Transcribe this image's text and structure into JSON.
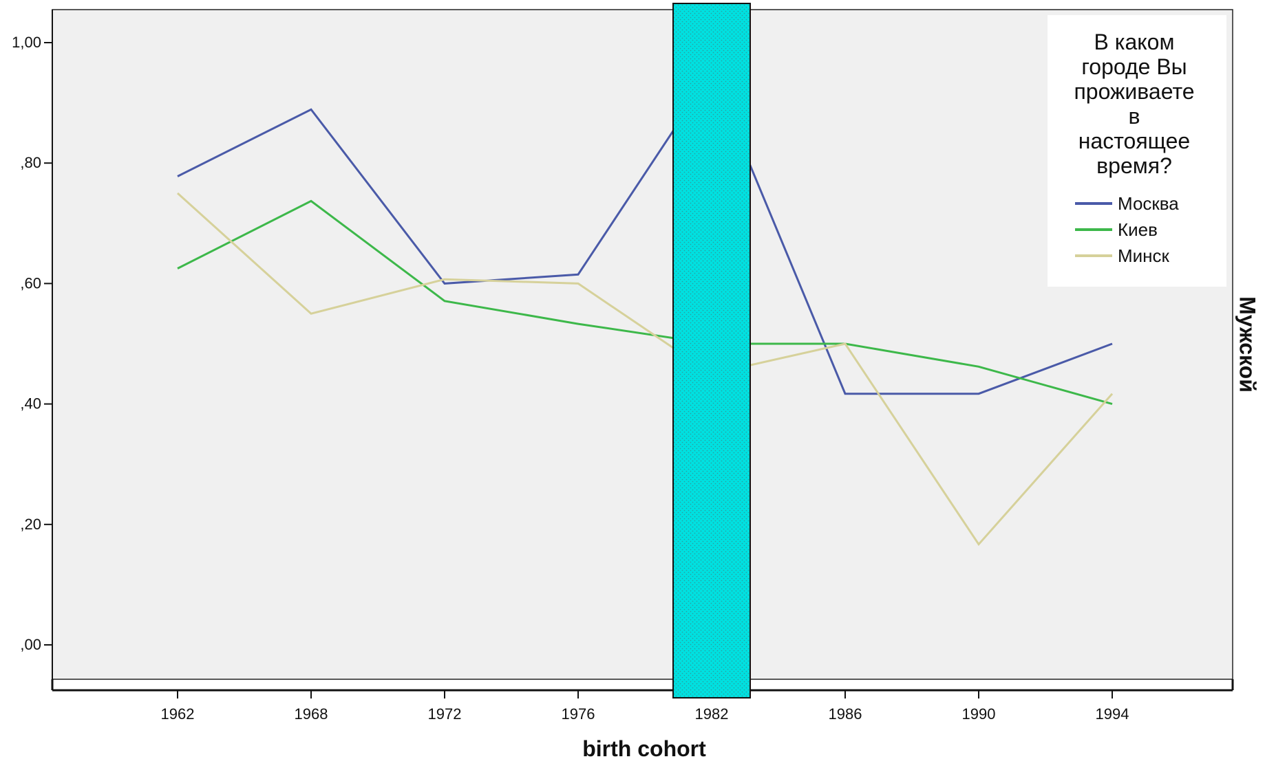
{
  "chart_data": {
    "type": "line",
    "x": [
      1962,
      1968,
      1972,
      1976,
      1982,
      1986,
      1990,
      1994
    ],
    "x_tick_labels": [
      "1962",
      "1968",
      "1972",
      "1976",
      "1982",
      "1986",
      "1990",
      "1994"
    ],
    "xlabel": "birth cohort",
    "ylabel": "",
    "panel_label": "Мужской",
    "ylim": [
      0,
      1.0
    ],
    "y_ticks": [
      0,
      0.2,
      0.4,
      0.6,
      0.8,
      1.0
    ],
    "y_tick_labels": [
      ",00",
      ",20",
      ",40",
      ",60",
      ",80",
      "1,00"
    ],
    "grid": false,
    "legend": {
      "title_lines": [
        "В каком",
        "городе Вы",
        "проживаете",
        "в",
        "настоящее",
        "время?"
      ],
      "placement": "top-right"
    },
    "highlight_band": {
      "x_category": "1982",
      "color": "#00e5e5"
    },
    "series": [
      {
        "name": "Москва",
        "color": "#4a5aa8",
        "values": [
          0.778,
          0.889,
          0.6,
          0.615,
          0.95,
          0.417,
          0.417,
          0.5
        ]
      },
      {
        "name": "Киев",
        "color": "#3db84a",
        "values": [
          0.625,
          0.737,
          0.571,
          0.533,
          0.5,
          0.5,
          0.462,
          0.4
        ]
      },
      {
        "name": "Минск",
        "color": "#d6d19a",
        "values": [
          0.75,
          0.55,
          0.607,
          0.6,
          0.45,
          0.5,
          0.167,
          0.417
        ]
      }
    ]
  }
}
